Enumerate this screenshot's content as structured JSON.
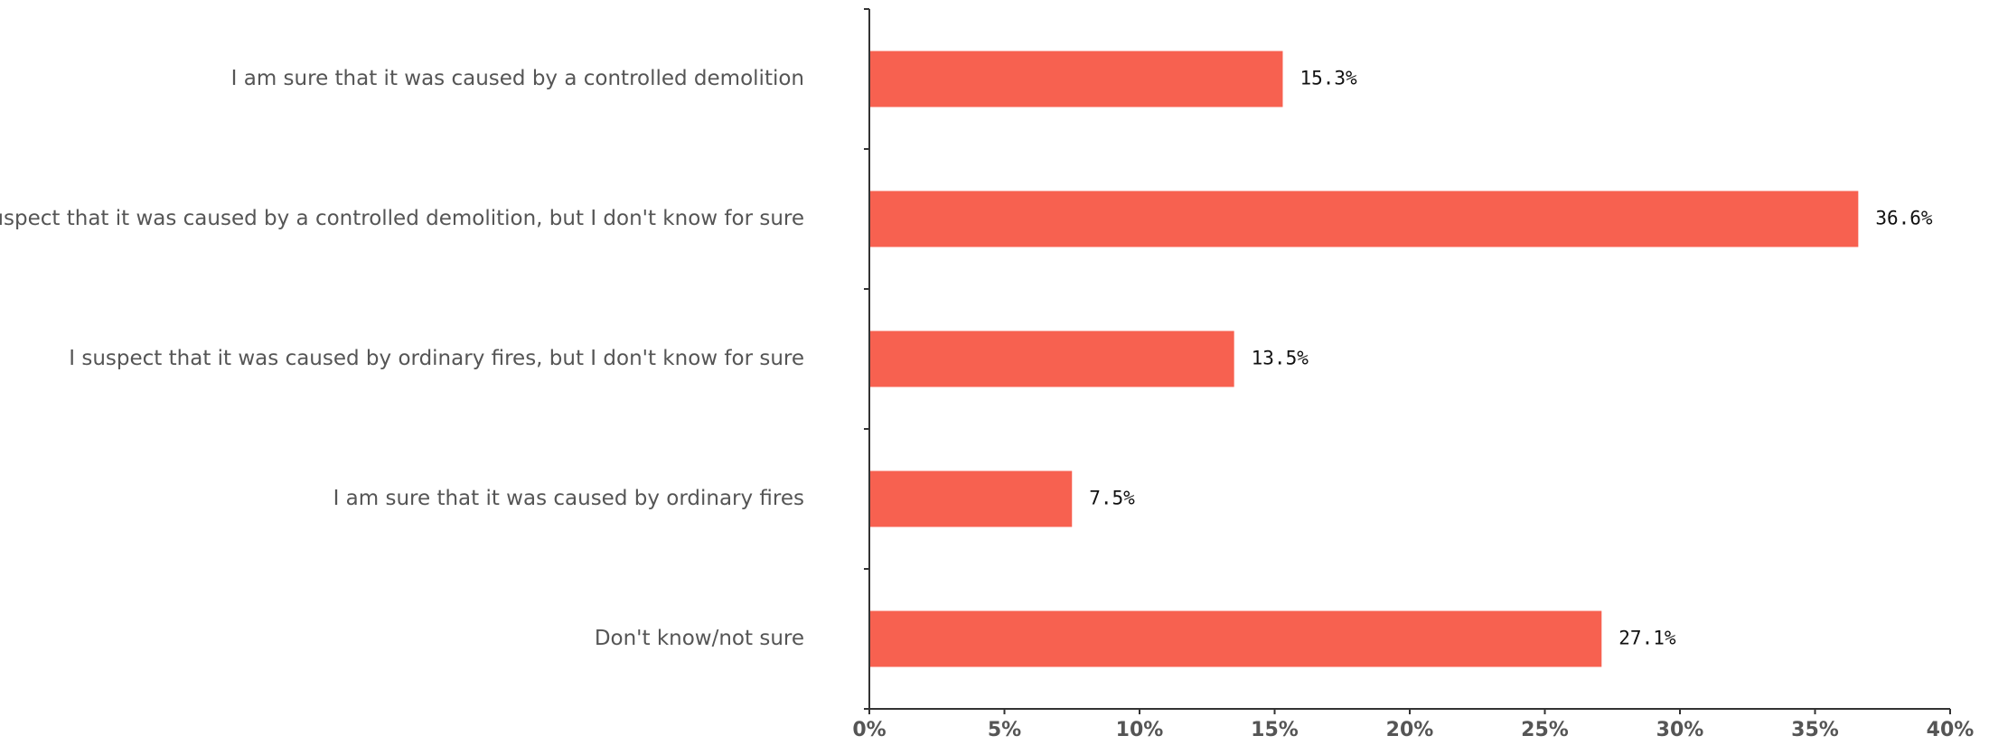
{
  "chart_data": {
    "type": "bar",
    "orientation": "horizontal",
    "categories": [
      "I am sure that it was caused by a controlled demolition",
      "I suspect that it was caused by a controlled demolition, but I don't know for sure",
      "I suspect that it was caused by ordinary fires, but I don't know for sure",
      "I am sure that it was caused by ordinary fires",
      "Don't know/not sure"
    ],
    "values": [
      15.3,
      36.6,
      13.5,
      7.5,
      27.1
    ],
    "value_labels": [
      "15.3%",
      "36.6%",
      "13.5%",
      "7.5%",
      "27.1%"
    ],
    "xlim": [
      0,
      40
    ],
    "xticks": [
      0,
      5,
      10,
      15,
      20,
      25,
      30,
      35,
      40
    ],
    "xtick_labels": [
      "0%",
      "5%",
      "10%",
      "15%",
      "20%",
      "25%",
      "30%",
      "35%",
      "40%"
    ],
    "bar_color": "#f76150",
    "grid": false,
    "title": "",
    "xlabel": "",
    "ylabel": ""
  }
}
